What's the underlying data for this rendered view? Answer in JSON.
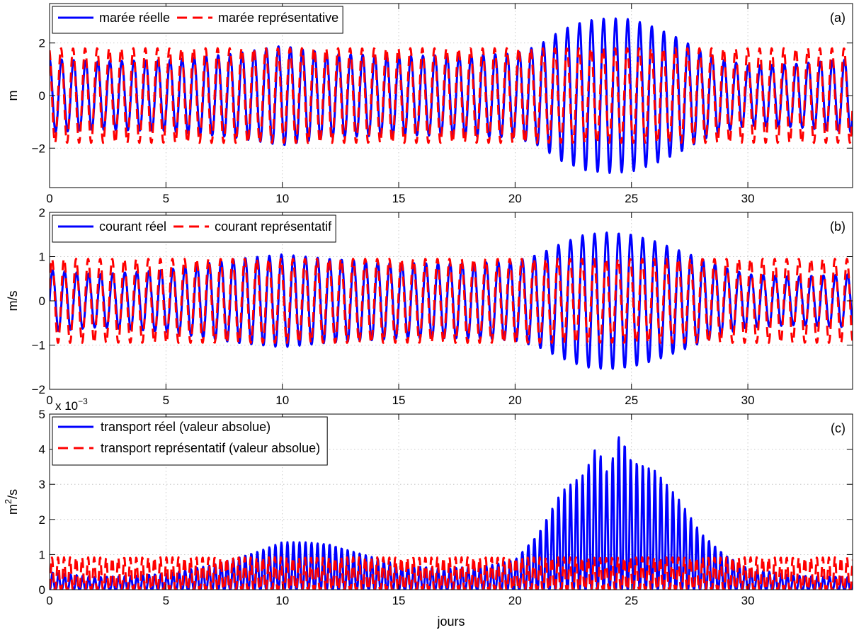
{
  "figure": {
    "xlabel": "jours",
    "x_ticks": [
      0,
      5,
      10,
      15,
      20,
      25,
      30
    ],
    "x_range": [
      0,
      34.5
    ]
  },
  "chart_data": [
    {
      "type": "line",
      "panel_label": "(a)",
      "ylabel": "m",
      "ylim": [
        -3.5,
        3.5
      ],
      "y_ticks": [
        -2,
        0,
        2
      ],
      "y_tick_labels": [
        "−2",
        "0",
        "2"
      ],
      "grid": true,
      "legend_placement": "top-left",
      "legend_layout": "horizontal",
      "model": "tide",
      "series": [
        {
          "name": "marée réelle",
          "color": "#0000ff",
          "style": "solid",
          "envelope_x": [
            0,
            2,
            5,
            8,
            10,
            12,
            15,
            18,
            20,
            21,
            22,
            23,
            24,
            25,
            26,
            27,
            28,
            29,
            30,
            32,
            34.5
          ],
          "envelope_y": [
            1.4,
            1.3,
            1.35,
            1.6,
            1.9,
            1.6,
            1.5,
            1.55,
            1.6,
            1.9,
            2.5,
            2.85,
            2.95,
            2.9,
            2.6,
            2.2,
            1.7,
            1.35,
            1.15,
            1.2,
            1.4
          ]
        },
        {
          "name": "marée représentative",
          "color": "#ff0000",
          "style": "dashed",
          "amplitude": 1.8
        }
      ]
    },
    {
      "type": "line",
      "panel_label": "(b)",
      "ylabel": "m/s",
      "ylim": [
        -2,
        2
      ],
      "y_ticks": [
        -2,
        -1,
        0,
        1,
        2
      ],
      "y_tick_labels": [
        "−2",
        "−1",
        "0",
        "1",
        "2"
      ],
      "grid": true,
      "legend_placement": "top-left",
      "legend_layout": "horizontal",
      "model": "current",
      "series": [
        {
          "name": "courant réel",
          "color": "#0000ff",
          "style": "solid",
          "envelope_x": [
            0,
            2,
            5,
            8,
            10,
            12,
            15,
            18,
            20,
            21,
            22,
            23,
            24,
            25,
            26,
            27,
            28,
            29,
            30,
            32,
            34.5
          ],
          "envelope_y": [
            0.7,
            0.6,
            0.7,
            0.95,
            1.05,
            0.95,
            0.85,
            0.85,
            0.9,
            1.05,
            1.3,
            1.5,
            1.55,
            1.5,
            1.35,
            1.15,
            0.95,
            0.75,
            0.6,
            0.55,
            0.6
          ]
        },
        {
          "name": "courant représentatif",
          "color": "#ff0000",
          "style": "dashed",
          "amplitude": 0.95
        }
      ]
    },
    {
      "type": "line",
      "panel_label": "(c)",
      "ylabel": "m",
      "ylabel_sup": "2",
      "ylabel_rest": "/s",
      "ylim": [
        0,
        5
      ],
      "y_ticks": [
        0,
        1,
        2,
        3,
        4,
        5
      ],
      "y_tick_labels": [
        "0",
        "1",
        "2",
        "3",
        "4",
        "5"
      ],
      "y_multiplier": "x 10",
      "y_multiplier_exp": "−3",
      "grid": true,
      "legend_placement": "top-left",
      "legend_layout": "vertical",
      "model": "transport",
      "series": [
        {
          "name": "transport réel (valeur absolue)",
          "color": "#0000ff",
          "style": "solid",
          "envelope_x": [
            0,
            2,
            5,
            7,
            8,
            9,
            10,
            11,
            12,
            13,
            14,
            15,
            17,
            19,
            20,
            21,
            22,
            23,
            23.5,
            24,
            24.5,
            25,
            26,
            27,
            28,
            29,
            30,
            32,
            34.5
          ],
          "envelope_y": [
            0.5,
            0.35,
            0.45,
            0.7,
            0.9,
            1.1,
            1.35,
            1.35,
            1.3,
            1.1,
            0.9,
            0.7,
            0.6,
            0.7,
            0.85,
            1.6,
            2.8,
            3.3,
            4.1,
            3.3,
            4.5,
            3.7,
            3.4,
            2.6,
            1.6,
            1.0,
            0.6,
            0.4,
            0.35
          ]
        },
        {
          "name": "transport représentatif (valeur absolue)",
          "color": "#ff0000",
          "style": "dashed",
          "amplitude": 0.92
        }
      ]
    }
  ]
}
